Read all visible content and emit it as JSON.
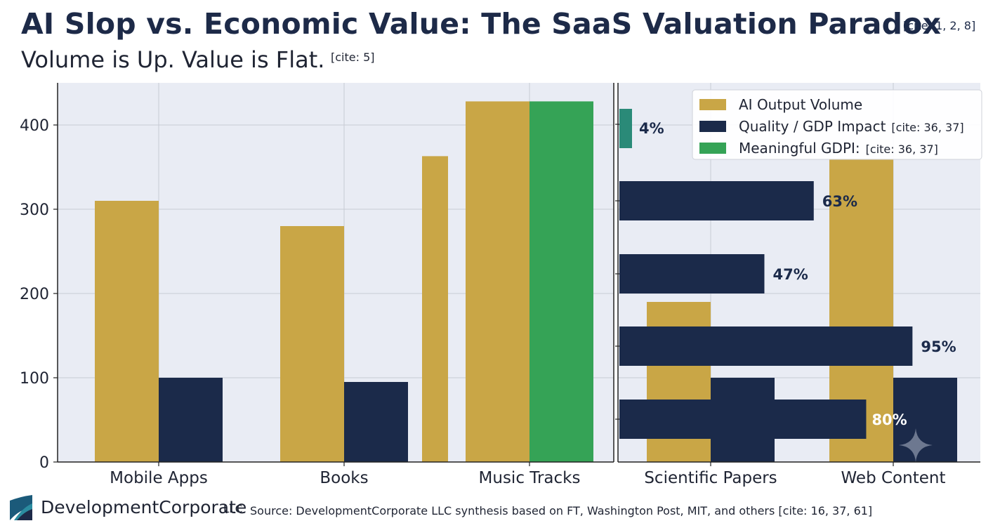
{
  "header": {
    "title": "AI Slop vs. Economic Value: The SaaS Valuation Paradox",
    "title_cite": "[cite: 1, 2, 8]",
    "subtitle": "Volume is Up. Value is Flat.",
    "subtitle_cite": "[cite: 5]"
  },
  "footer": {
    "brand": "DevelopmentCorporate",
    "brand_suffix": "LLC",
    "source": "Source: DevelopmentCorporate LLC synthesis based on FT, Washington Post, MIT, and others [cite: 16, 37, 61]"
  },
  "colors": {
    "volume": "#c9a646",
    "quality": "#1b2a4a",
    "gdpi": "#35a356",
    "teal": "#2a8a78",
    "plot_bg": "#e9ecf4",
    "grid": "#c7cbd4"
  },
  "icons": [
    "logo-icon",
    "sparkle-icon"
  ],
  "chart_data": [
    {
      "type": "bar",
      "title": "",
      "xlabel": "",
      "ylabel": "",
      "ylim": [
        0,
        450
      ],
      "yticks": [
        0,
        100,
        200,
        300,
        400
      ],
      "grid": true,
      "categories": [
        "Mobile Apps",
        "Books",
        "Music Tracks",
        "Scientific Papers",
        "Web Content"
      ],
      "series": [
        {
          "name": "AI Output Volume",
          "values": [
            310,
            280,
            428,
            190,
            360
          ]
        },
        {
          "name": "Quality / GDP Impact",
          "name_cite": "[cite: 36, 37]",
          "values": [
            100,
            95,
            null,
            100,
            100
          ]
        },
        {
          "name": "Meaningful GDPI:",
          "name_cite": "[cite: 36, 37]",
          "values": [
            null,
            null,
            428,
            null,
            null
          ]
        }
      ],
      "extra_bars": [
        {
          "category": "Books",
          "value": 363,
          "series": "AI Output Volume"
        }
      ],
      "legend": "top-right"
    },
    {
      "type": "bar",
      "orientation": "horizontal",
      "xlim": [
        0,
        100
      ],
      "values": [
        4,
        63,
        47,
        95,
        80
      ],
      "labels": [
        "4%",
        "63%",
        "47%",
        "95%",
        "80%"
      ]
    }
  ]
}
